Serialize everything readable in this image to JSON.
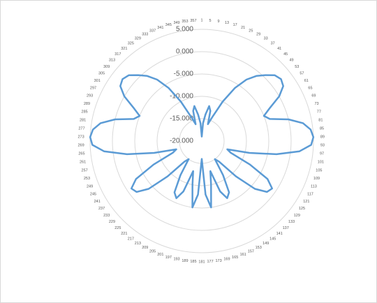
{
  "chart_data": {
    "type": "radar",
    "categories": [
      "1",
      "5",
      "9",
      "13",
      "17",
      "21",
      "25",
      "29",
      "33",
      "37",
      "41",
      "45",
      "49",
      "53",
      "57",
      "61",
      "65",
      "69",
      "73",
      "77",
      "81",
      "85",
      "89",
      "93",
      "97",
      "101",
      "105",
      "109",
      "113",
      "117",
      "121",
      "125",
      "129",
      "133",
      "137",
      "141",
      "145",
      "149",
      "153",
      "157",
      "161",
      "165",
      "169",
      "173",
      "177",
      "181",
      "185",
      "189",
      "193",
      "197",
      "201",
      "205",
      "209",
      "213",
      "217",
      "221",
      "225",
      "229",
      "233",
      "237",
      "241",
      "245",
      "249",
      "253",
      "257",
      "261",
      "265",
      "269",
      "273",
      "277",
      "281",
      "285",
      "289",
      "293",
      "297",
      "301",
      "305",
      "309",
      "313",
      "317",
      "321",
      "325",
      "329",
      "333",
      "337",
      "341",
      "345",
      "349",
      "353",
      "357"
    ],
    "values": [
      -19,
      -16,
      -14,
      -12,
      -13,
      -16,
      -14,
      -10,
      -6,
      -3,
      -1,
      0.5,
      2,
      2.5,
      2,
      0,
      -3,
      -5,
      -4,
      0,
      3,
      4.5,
      5,
      4.5,
      2,
      -3,
      -9,
      -14,
      -13,
      -8,
      -3,
      -1,
      -1.5,
      -4,
      -9,
      -14,
      -15,
      -11,
      -7,
      -6,
      -8,
      -13,
      -10,
      -5,
      -8,
      -16,
      -8,
      -5,
      -10,
      -13,
      -8,
      -6,
      -7,
      -11,
      -15,
      -14,
      -9,
      -4,
      -1.5,
      -1,
      -3,
      -8,
      -13,
      -14,
      -9,
      -3,
      2,
      4.5,
      5,
      4.5,
      3,
      0,
      -4,
      -5,
      -3,
      0,
      2,
      2.5,
      2,
      0.5,
      -1,
      -3,
      -6,
      -10,
      -14,
      -16,
      -13,
      -12,
      -14,
      -16
    ],
    "color": "#5b9bd5",
    "ylim": [
      -20,
      5
    ],
    "yticks": [
      {
        "value": 5,
        "label": "5.000"
      },
      {
        "value": 0,
        "label": "0.000"
      },
      {
        "value": -5,
        "label": "-5.000"
      },
      {
        "value": -10,
        "label": "-10.000"
      },
      {
        "value": -15,
        "label": "-15.000"
      },
      {
        "value": -20,
        "label": "-20.000"
      }
    ],
    "grid": true
  }
}
